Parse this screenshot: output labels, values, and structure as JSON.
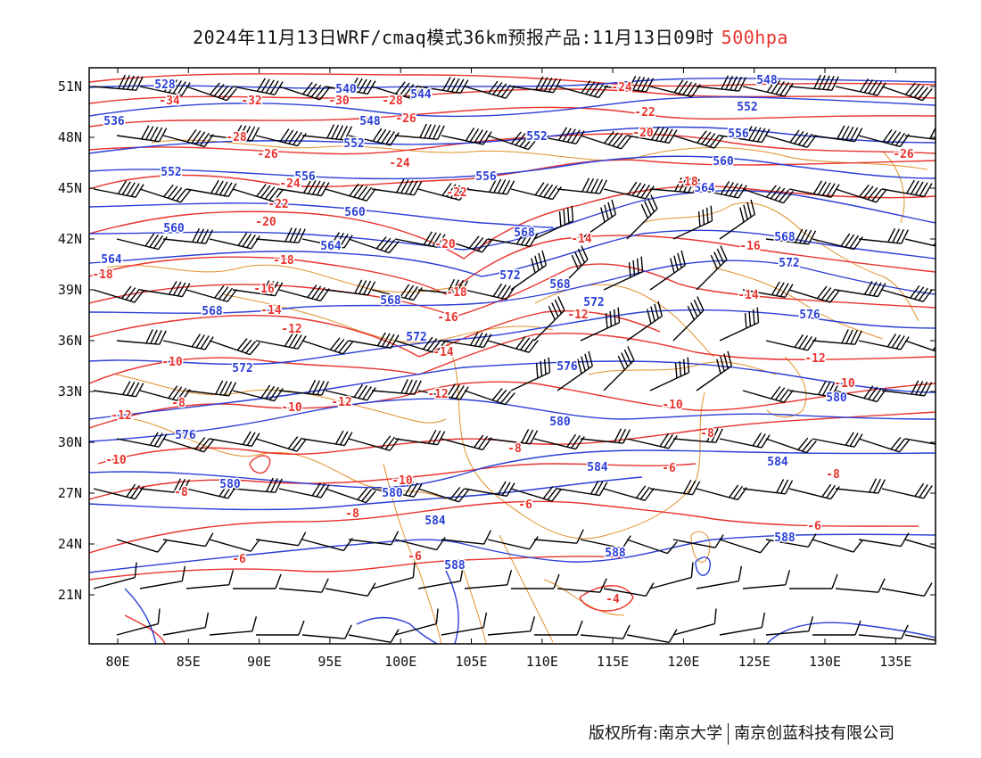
{
  "title": {
    "main": "2024年11月13日WRF/cmaq模式36km预报产品:11月13日09时",
    "level": "500hpa"
  },
  "footer": {
    "left": "版权所有:南京大学",
    "right": "南京创蓝科技有限公司"
  },
  "colors": {
    "height_contour": "#2b3fd6",
    "temperature_contour": "#e8332e",
    "boundaries": "#e0902a",
    "wind_barb": "#000000"
  },
  "map": {
    "lon_range": [
      78,
      138
    ],
    "lat_range": [
      18,
      52
    ],
    "x_ticks": [
      "80E",
      "85E",
      "90E",
      "95E",
      "100E",
      "105E",
      "110E",
      "115E",
      "120E",
      "125E",
      "130E",
      "135E"
    ],
    "y_ticks": [
      "51N",
      "48N",
      "45N",
      "42N",
      "39N",
      "36N",
      "33N",
      "30N",
      "27N",
      "24N",
      "21N"
    ],
    "height_labels": [
      "528",
      "536",
      "540",
      "544",
      "548",
      "552",
      "556",
      "560",
      "564",
      "568",
      "572",
      "576",
      "580",
      "584",
      "588"
    ],
    "temperature_labels": [
      "-34",
      "-32",
      "-30",
      "-28",
      "-26",
      "-24",
      "-22",
      "-20",
      "-18",
      "-16",
      "-14",
      "-12",
      "-10",
      "-8",
      "-6",
      "-4"
    ]
  }
}
